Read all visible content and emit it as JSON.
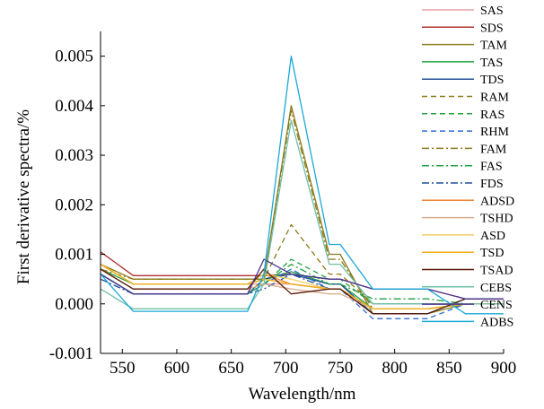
{
  "chart_data": {
    "type": "line",
    "title": "",
    "xlabel": "Wavelength/nm",
    "ylabel": "First derivative spectra/%",
    "xlim": [
      530,
      900
    ],
    "ylim": [
      -0.001,
      0.0055
    ],
    "x_ticks": [
      550,
      600,
      650,
      700,
      750,
      800,
      850,
      900
    ],
    "x_tick_labels": [
      "550",
      "600",
      "650",
      "700",
      "750",
      "800",
      "850",
      "900"
    ],
    "y_ticks": [
      -0.001,
      0.0,
      0.001,
      0.002,
      0.003,
      0.004,
      0.005
    ],
    "y_tick_labels": [
      "-0.001",
      "0.000",
      "0.001",
      "0.002",
      "0.003",
      "0.004",
      "0.005"
    ],
    "grid": false,
    "legend_position": "right",
    "x": [
      530,
      560,
      665,
      680,
      705,
      740,
      750,
      780,
      830,
      865,
      900
    ],
    "series": [
      {
        "name": "SAS",
        "color": "#e8a0a0",
        "dash": "solid",
        "values": [
          0.0008,
          0.0004,
          0.0004,
          0.0004,
          0.0004,
          0.0003,
          0.0003,
          -0.0001,
          -0.0001,
          0.0,
          0.0
        ]
      },
      {
        "name": "SDS",
        "color": "#b03030",
        "dash": "solid",
        "values": [
          0.00105,
          0.00057,
          0.00057,
          0.00057,
          0.0006,
          0.0005,
          0.0005,
          0.0003,
          0.0003,
          0.0001,
          0.0001
        ]
      },
      {
        "name": "TAM",
        "color": "#8b7a1a",
        "dash": "solid",
        "values": [
          0.0008,
          0.0005,
          0.0005,
          0.0005,
          0.004,
          0.001,
          0.001,
          -0.0002,
          -0.0002,
          0.0,
          0.0
        ]
      },
      {
        "name": "TAS",
        "color": "#22a040",
        "dash": "solid",
        "values": [
          0.0007,
          0.0004,
          0.0004,
          0.0005,
          0.00065,
          0.0004,
          0.0004,
          -0.0001,
          -0.0001,
          0.0,
          0.0
        ]
      },
      {
        "name": "TDS",
        "color": "#1f4e99",
        "dash": "solid",
        "values": [
          0.0006,
          0.0002,
          0.0002,
          0.0005,
          0.0006,
          0.0004,
          0.0004,
          -0.0002,
          -0.0002,
          0.0001,
          0.0001
        ]
      },
      {
        "name": "RAM",
        "color": "#8b7a1a",
        "dash": "6,4",
        "values": [
          0.0006,
          0.0002,
          0.0002,
          0.0005,
          0.0016,
          0.0006,
          0.0006,
          0.0,
          0.0,
          0.0,
          0.0
        ]
      },
      {
        "name": "RAS",
        "color": "#22a040",
        "dash": "6,4",
        "values": [
          0.0006,
          0.0002,
          0.0002,
          0.0004,
          0.0009,
          0.0005,
          0.0005,
          0.0,
          0.0,
          0.0,
          0.0
        ]
      },
      {
        "name": "RHM",
        "color": "#2f6fd0",
        "dash": "6,4",
        "values": [
          0.0006,
          0.0002,
          0.0002,
          0.0004,
          0.0007,
          0.0003,
          0.0003,
          -0.0003,
          -0.0003,
          0.0,
          0.0
        ]
      },
      {
        "name": "FAM",
        "color": "#8b7a1a",
        "dash": "8,3,2,3",
        "values": [
          0.0007,
          0.0005,
          0.0005,
          0.0005,
          0.0039,
          0.0009,
          0.0009,
          -0.0001,
          -0.0001,
          0.0,
          0.0
        ]
      },
      {
        "name": "FAS",
        "color": "#22a040",
        "dash": "8,3,2,3",
        "values": [
          0.0006,
          0.0002,
          0.0002,
          0.0004,
          0.0008,
          0.0004,
          0.0004,
          0.0001,
          0.0001,
          0.0,
          0.0
        ]
      },
      {
        "name": "FDS",
        "color": "#1f4e99",
        "dash": "8,3,2,3",
        "values": [
          0.0005,
          0.0002,
          0.0002,
          0.0003,
          0.0006,
          0.0003,
          0.0003,
          -0.0002,
          -0.0002,
          0.0001,
          0.0001
        ]
      },
      {
        "name": "ADSD",
        "color": "#f08030",
        "dash": "solid",
        "values": [
          0.0008,
          0.0004,
          0.0004,
          0.0006,
          0.0004,
          0.0003,
          0.0003,
          -0.0001,
          -0.0001,
          0.0,
          0.0
        ]
      },
      {
        "name": "TSHD",
        "color": "#d8b090",
        "dash": "solid",
        "values": [
          0.0007,
          0.0003,
          0.0003,
          0.0004,
          0.0003,
          0.0002,
          0.0002,
          -0.0001,
          -0.0001,
          0.0,
          0.0
        ]
      },
      {
        "name": "ASD",
        "color": "#f0d060",
        "dash": "solid",
        "values": [
          0.0008,
          0.0004,
          0.0004,
          0.0006,
          0.0005,
          0.0003,
          0.0003,
          -0.0001,
          -0.0001,
          0.0,
          0.0
        ]
      },
      {
        "name": "TSD",
        "color": "#f0b020",
        "dash": "solid",
        "values": [
          0.0008,
          0.0004,
          0.0004,
          0.0005,
          0.0004,
          0.0003,
          0.0003,
          -0.0001,
          -0.0001,
          0.0,
          0.0
        ]
      },
      {
        "name": "TSAD",
        "color": "#5a1a08",
        "dash": "solid",
        "values": [
          0.0007,
          0.0003,
          0.0003,
          0.0007,
          0.0002,
          0.0003,
          0.0003,
          -0.0002,
          -0.0002,
          0.0001,
          0.0001
        ]
      },
      {
        "name": "CEBS",
        "color": "#70c0a8",
        "dash": "solid",
        "values": [
          0.0003,
          -0.0001,
          -0.0001,
          0.0004,
          0.0037,
          0.0008,
          0.0008,
          0.0,
          0.0,
          0.0,
          0.0
        ]
      },
      {
        "name": "CENS",
        "color": "#4b3590",
        "dash": "solid",
        "values": [
          0.0006,
          0.0002,
          0.0002,
          0.0009,
          0.0006,
          0.0005,
          0.0005,
          0.0003,
          0.0003,
          0.0001,
          0.0001
        ]
      },
      {
        "name": "ADBS",
        "color": "#1aa8d8",
        "dash": "solid",
        "values": [
          0.0006,
          -0.00015,
          -0.00015,
          0.0006,
          0.005,
          0.0012,
          0.0012,
          0.0003,
          0.0003,
          -0.0002,
          -0.0002
        ]
      }
    ]
  }
}
